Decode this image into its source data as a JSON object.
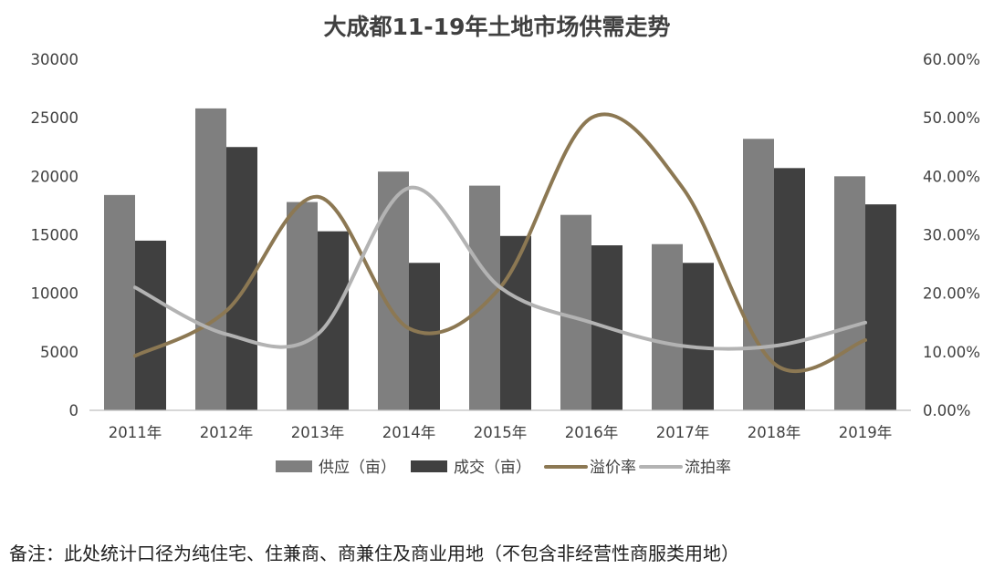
{
  "chart_data": {
    "type": "bar",
    "title": "大成都11-19年土地市场供需走势",
    "categories": [
      "2011年",
      "2012年",
      "2013年",
      "2014年",
      "2015年",
      "2016年",
      "2017年",
      "2018年",
      "2019年"
    ],
    "y_left": {
      "min": 0,
      "max": 30000,
      "ticks": [
        "0",
        "5000",
        "10000",
        "15000",
        "20000",
        "25000",
        "30000"
      ]
    },
    "y_right": {
      "min": 0,
      "max": 0.6,
      "ticks": [
        "0.00%",
        "10.00%",
        "20.00%",
        "30.00%",
        "40.00%",
        "50.00%",
        "60.00%"
      ]
    },
    "grid": false,
    "legend_position": "bottom",
    "series": [
      {
        "name": "供应（亩）",
        "type": "bar",
        "axis": "left",
        "color": "#7f7f7f",
        "values": [
          18400,
          25800,
          17800,
          20400,
          19200,
          16700,
          14200,
          23200,
          20000
        ]
      },
      {
        "name": "成交（亩）",
        "type": "bar",
        "axis": "left",
        "color": "#404040",
        "values": [
          14500,
          22500,
          15300,
          12600,
          14900,
          14100,
          12600,
          20700,
          17600
        ]
      },
      {
        "name": "溢价率",
        "type": "line",
        "axis": "right",
        "color": "#8c7853",
        "values": [
          0.093,
          0.17,
          0.365,
          0.14,
          0.21,
          0.5,
          0.38,
          0.08,
          0.12
        ]
      },
      {
        "name": "流拍率",
        "type": "line",
        "axis": "right",
        "color": "#b3b3b3",
        "values": [
          0.21,
          0.13,
          0.13,
          0.38,
          0.21,
          0.15,
          0.11,
          0.11,
          0.15
        ]
      }
    ]
  },
  "note": "备注：此处统计口径为纯住宅、住兼商、商兼住及商业用地（不包含非经营性商服类用地）"
}
